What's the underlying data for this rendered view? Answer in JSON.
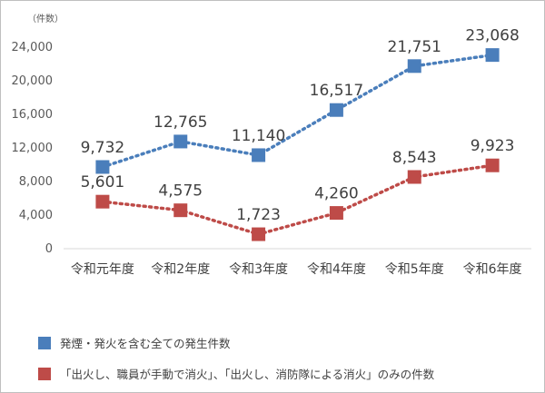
{
  "chart_data": {
    "type": "line",
    "unit_label": "（件数）",
    "categories": [
      "令和元年度",
      "令和2年度",
      "令和3年度",
      "令和4年度",
      "令和5年度",
      "令和6年度"
    ],
    "ylim": [
      0,
      24000
    ],
    "yticks": [
      "0",
      "4,000",
      "8,000",
      "12,000",
      "16,000",
      "20,000",
      "24,000"
    ],
    "grid": false,
    "legend_position": "bottom",
    "series": [
      {
        "name": "発煙・発火を含む全ての発生件数",
        "color": "#4a7ebb",
        "values": [
          9732,
          12765,
          11140,
          16517,
          21751,
          23068
        ],
        "labels": [
          "9,732",
          "12,765",
          "11,140",
          "16,517",
          "21,751",
          "23,068"
        ]
      },
      {
        "name": "「出火し、職員が手動で消火」、「出火し、消防隊による消火」のみの件数",
        "color": "#be4b48",
        "values": [
          5601,
          4575,
          1723,
          4260,
          8543,
          9923
        ],
        "labels": [
          "5,601",
          "4,575",
          "1,723",
          "4,260",
          "8,543",
          "9,923"
        ]
      }
    ]
  }
}
